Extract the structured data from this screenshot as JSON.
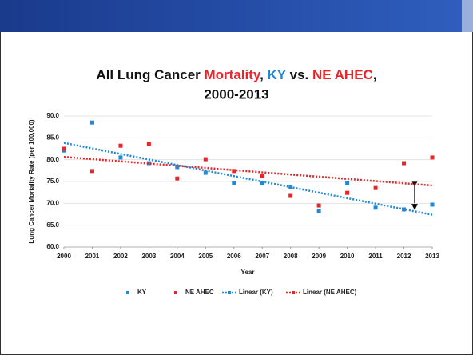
{
  "chart_data": {
    "type": "scatter",
    "title": [
      {
        "text": "All Lung Cancer ",
        "color": "#111111"
      },
      {
        "text": "Mortality",
        "color": "#e8262a"
      },
      {
        "text": ", ",
        "color": "#111111"
      },
      {
        "text": "KY",
        "color": "#1f8ad6"
      },
      {
        "text": " vs. ",
        "color": "#111111"
      },
      {
        "text": "NE AHEC",
        "color": "#e8262a"
      },
      {
        "text": ",",
        "color": "#111111"
      }
    ],
    "subtitle": "2000-2013",
    "x_label": "Year",
    "y_label": "Lung Cancer Mortality Rate (per 100,000)",
    "x": [
      2000,
      2001,
      2002,
      2003,
      2004,
      2005,
      2006,
      2007,
      2008,
      2009,
      2010,
      2011,
      2012,
      2013
    ],
    "xlim": [
      2000,
      2013
    ],
    "xticks": [
      2000,
      2001,
      2002,
      2003,
      2004,
      2005,
      2006,
      2007,
      2008,
      2009,
      2010,
      2011,
      2012,
      2013
    ],
    "ylim": [
      60,
      90
    ],
    "yticks": [
      {
        "value": 60,
        "label": "60.0"
      },
      {
        "value": 65,
        "label": "65.0"
      },
      {
        "value": 70,
        "label": "70.0"
      },
      {
        "value": 75,
        "label": "75.0"
      },
      {
        "value": 80,
        "label": "80.0"
      },
      {
        "value": 85,
        "label": "85.0"
      },
      {
        "value": 90,
        "label": "90.0"
      }
    ],
    "grid": true,
    "legend": "bottom",
    "series": [
      {
        "name": "KY",
        "color": "#1f8ad6",
        "trend_name": "Linear (KY)",
        "values": [
          82.1,
          88.5,
          80.5,
          79.2,
          78.3,
          77.0,
          74.6,
          74.6,
          73.7,
          68.2,
          74.6,
          69.0,
          68.6,
          69.7
        ]
      },
      {
        "name": "NE AHEC",
        "color": "#e8262a",
        "trend_name": "Linear (NE AHEC)",
        "values": [
          82.5,
          77.4,
          83.2,
          83.6,
          75.7,
          80.1,
          77.4,
          76.3,
          71.7,
          69.5,
          72.4,
          73.5,
          79.2,
          80.5
        ]
      }
    ]
  }
}
